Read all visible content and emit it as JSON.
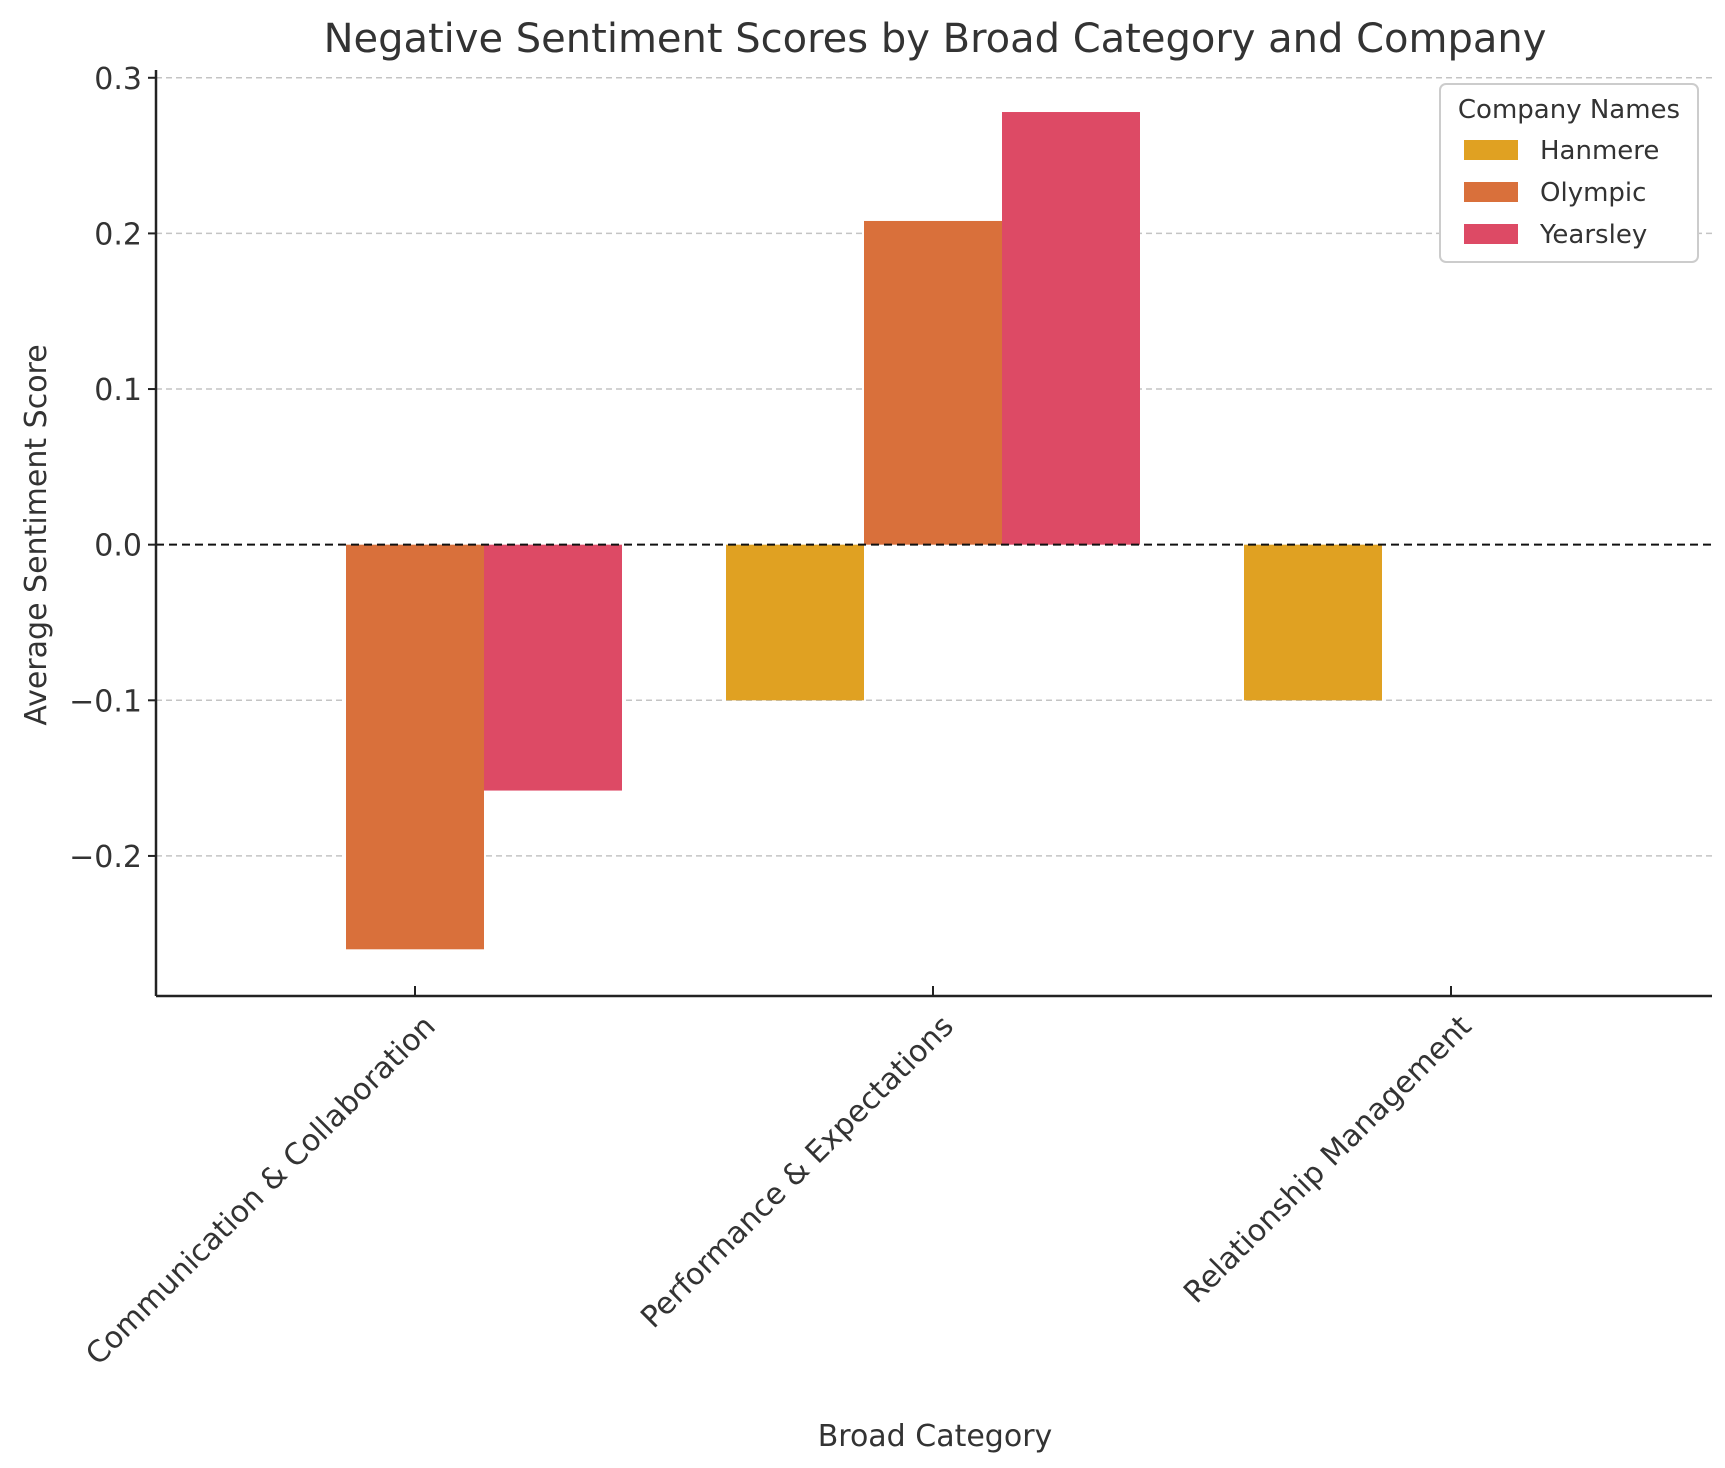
{
  "chart_data": {
    "type": "bar",
    "title": "Negative Sentiment Scores by Broad Category and Company",
    "xlabel": "Broad Category",
    "ylabel": "Average Sentiment Score",
    "ylim": [
      -0.29,
      0.305
    ],
    "yticks": [
      -0.2,
      -0.1,
      0.0,
      0.1,
      0.2,
      0.3
    ],
    "ytick_labels": [
      "−0.2",
      "−0.1",
      "0.0",
      "0.1",
      "0.2",
      "0.3"
    ],
    "grid": "horizontal dashed",
    "zero_line": "dashed",
    "categories": [
      "Communication & Collaboration",
      "Performance & Expectations",
      "Relationship Management"
    ],
    "legend": {
      "title": "Company Names",
      "placement": "top-right"
    },
    "series": [
      {
        "name": "Hanmere",
        "color": "#E0A122",
        "values": [
          null,
          -0.1,
          -0.1
        ]
      },
      {
        "name": "Olympic",
        "color": "#D9703B",
        "values": [
          -0.26,
          0.208,
          null
        ]
      },
      {
        "name": "Yearsley",
        "color": "#DD4A65",
        "values": [
          -0.158,
          0.278,
          null
        ]
      }
    ]
  }
}
